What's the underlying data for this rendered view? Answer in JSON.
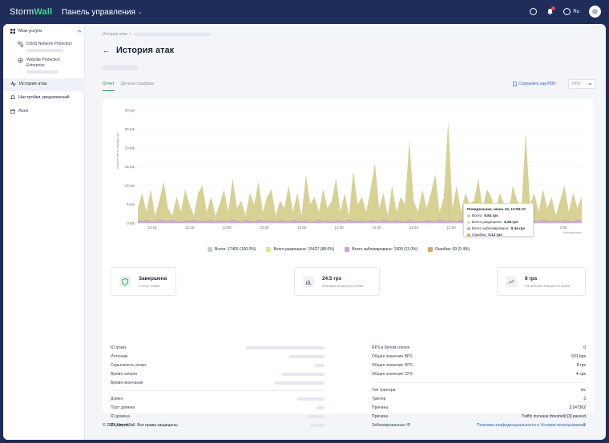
{
  "header": {
    "logo_a": "Storm",
    "logo_b": "Wall",
    "panel_title": "Панель управления",
    "lang": "Ru",
    "notification_count": "1"
  },
  "sidebar": {
    "services_title": "Мои услуги",
    "items": [
      {
        "label": "DDoS Network Protection"
      },
      {
        "label": "Website Protection Enterprise"
      }
    ],
    "nav": [
      {
        "label": "История атак"
      },
      {
        "label": "Настройки уведомлений"
      },
      {
        "label": "Логи"
      }
    ]
  },
  "page": {
    "breadcrumb": "История атак",
    "title": "История атак",
    "tabs": [
      "Отчет",
      "Детали трафика"
    ],
    "save_pdf": "Сохранить как PDF",
    "select_value": "RPS"
  },
  "chart_data": {
    "type": "area",
    "ylabel": "Количество в секунду, rps",
    "xlabel": "Часы/минуты",
    "y_ticks": [
      "30 rps",
      "25 rps",
      "20 rps",
      "15 rps",
      "10 rps",
      "5 rps",
      "0 rps"
    ],
    "x_ticks": [
      "12:10",
      "12:15",
      "12:20",
      "12:25",
      "12:30",
      "12:35",
      "12:40",
      "12:45",
      "12:50",
      "12:55",
      "1:00",
      "1:05"
    ],
    "ylim": [
      0,
      30
    ],
    "series": [
      {
        "name": "Всего разрешено",
        "color": "#d6cf8e",
        "values": [
          4,
          8,
          3,
          9,
          2,
          6,
          11,
          4,
          2,
          7,
          3,
          9,
          5,
          2,
          8,
          10,
          3,
          7,
          2,
          5,
          9,
          3,
          12,
          4,
          6,
          2,
          8,
          5,
          11,
          3,
          7,
          9,
          2,
          6,
          4,
          10,
          3,
          8,
          2,
          13,
          5,
          7,
          3,
          9,
          4,
          6,
          12,
          3,
          8,
          2,
          14,
          5,
          7,
          3,
          9,
          16,
          4,
          8,
          2,
          10,
          3,
          7,
          5,
          22,
          6,
          3,
          9,
          4,
          8,
          13,
          3,
          7,
          27,
          4,
          10,
          3,
          8,
          5,
          6,
          12,
          4,
          9,
          7,
          3,
          8,
          5,
          2,
          10,
          6,
          4,
          24,
          5,
          8,
          3,
          9,
          4,
          7,
          2,
          6,
          10,
          3,
          8,
          4,
          7
        ]
      },
      {
        "name": "Всего заблокировано",
        "color": "#c9a3e6",
        "values": [
          1,
          0.5,
          1,
          0.6,
          0.4,
          1,
          0.8,
          0.5,
          1,
          0.6,
          0.4,
          0.9,
          0.5,
          1,
          0.6,
          0.7,
          0.5,
          1,
          0.4,
          0.8,
          0.6,
          0.5,
          1,
          0.7,
          0.4,
          0.9,
          0.6,
          0.5,
          1,
          0.7,
          0.5,
          0.8,
          0.4,
          0.9,
          0.6,
          0.5,
          1,
          0.7,
          0.5,
          0.8,
          0.4,
          0.6,
          1,
          0.5,
          0.7,
          0.4,
          0.9,
          0.6,
          0.5,
          1,
          0.7,
          0.5,
          0.8,
          0.4,
          0.9,
          0.6,
          0.5,
          1,
          0.7,
          0.5,
          0.8,
          0.6,
          0.4,
          1,
          0.5,
          0.7,
          0.4,
          0.9,
          0.6,
          0.5,
          1,
          0.7,
          0.5,
          0.8,
          0.4,
          0.9,
          0.6,
          0.5,
          1,
          0.7,
          0.5,
          0.8,
          0.4,
          0.9,
          0.6,
          0.5,
          1,
          0.7,
          0.5,
          0.8,
          0.4,
          0.9,
          0.6,
          0.5,
          1,
          0.7,
          0.5,
          0.8,
          0.4,
          0.9,
          0.6,
          0.5,
          1,
          0.7
        ]
      }
    ],
    "legend": [
      {
        "label": "Всего: 17405 (100.0%)",
        "color": "#c8ccd4"
      },
      {
        "label": "Всего разрешено: 15427 (88.6%)",
        "color": "#e9e08a"
      },
      {
        "label": "Всего заблокировано: 1909 (11.0%)",
        "color": "#c9a3e6"
      },
      {
        "label": "Ошибки: 69 (0.4%)",
        "color": "#e3a65b"
      }
    ],
    "tooltip": {
      "title": "Понедельник, июнь 24, 12:59:10",
      "rows": [
        {
          "label": "Всего:",
          "value": "6.84 rps",
          "color": "#c8ccd4"
        },
        {
          "label": "Всего разрешено:",
          "value": "6.28 rps",
          "color": "#e9e08a"
        },
        {
          "label": "Всего заблокировано:",
          "value": "0.44 rps",
          "color": "#c9a3e6"
        },
        {
          "label": "Ошибки:",
          "value": "0.12 rps",
          "color": "#e3a65b"
        }
      ]
    }
  },
  "stats": [
    {
      "value": "Завершена",
      "label": "Статус атаки"
    },
    {
      "value": "24.5 rps",
      "label": "Пиковая мощность атаки"
    },
    {
      "value": "8 rps",
      "label": "Начальная мощность атаки"
    }
  ],
  "details_left": [
    "ID атаки",
    "Источник",
    "Серьезность атаки",
    "Время начала",
    "Время окончания",
    "Домен",
    "Порт домена",
    "ID домена",
    "ID услуги"
  ],
  "details_right": [
    {
      "label": "RPS в белом списке",
      "value": "0"
    },
    {
      "label": "Общее значение BPS",
      "value": "531 bps"
    },
    {
      "label": "Общее значение RPS",
      "value": "8 rps"
    },
    {
      "label": "Общее значение CPS",
      "value": "4 cps"
    },
    {
      "label": "Тип триггера",
      "value": "inc"
    },
    {
      "label": "Триггер",
      "value": "3"
    },
    {
      "label": "Причина",
      "value": "3.147362"
    },
    {
      "label": "Причина",
      "value": "Traffic increase threshold [3] passed"
    },
    {
      "label": "Заблокированные IP",
      "value": "5"
    }
  ],
  "footer": {
    "copyright": "© 2024 StormWall. Все права защищены.",
    "links": "Политика конфиденциальности и Условия использования"
  }
}
